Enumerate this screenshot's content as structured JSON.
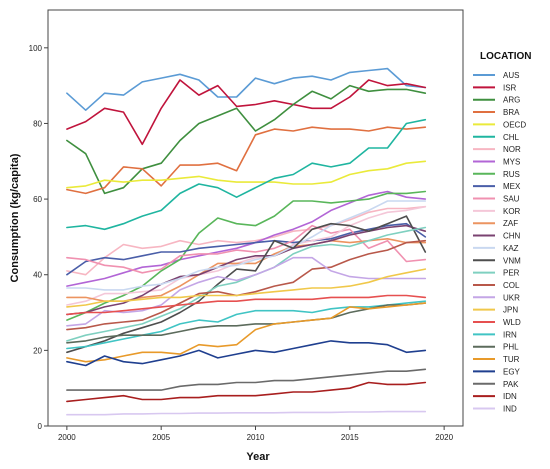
{
  "chart_data": {
    "type": "line",
    "title": "",
    "xlabel": "Year",
    "ylabel": "Consumption (kg/capita)",
    "xlim": [
      1999,
      2021
    ],
    "ylim": [
      0,
      110
    ],
    "x_ticks": [
      2000,
      2005,
      2010,
      2015,
      2020
    ],
    "y_ticks": [
      0,
      20,
      40,
      60,
      80,
      100
    ],
    "grid": false,
    "legend_title": "LOCATION",
    "legend_position": "right",
    "x": [
      2000,
      2001,
      2002,
      2003,
      2004,
      2005,
      2006,
      2007,
      2008,
      2009,
      2010,
      2011,
      2012,
      2013,
      2014,
      2015,
      2016,
      2017,
      2018,
      2019
    ],
    "series": [
      {
        "name": "AUS",
        "color": "#5b9bd5",
        "values": [
          88,
          83.5,
          88,
          87.5,
          91,
          92,
          93,
          91.5,
          87,
          87,
          92,
          90.5,
          92,
          92.5,
          91.5,
          93.5,
          94,
          94.5,
          90,
          89.5
        ]
      },
      {
        "name": "ISR",
        "color": "#c0143c",
        "values": [
          78.5,
          80.5,
          84,
          83,
          74.5,
          84,
          91.5,
          87.5,
          90,
          84.5,
          85,
          86,
          85,
          84,
          84,
          87,
          91.5,
          90,
          90.5,
          89.5
        ]
      },
      {
        "name": "ARG",
        "color": "#3f8f3f",
        "values": [
          75.5,
          72,
          61.5,
          63,
          68,
          69.5,
          75.5,
          80,
          82,
          84,
          78,
          81,
          85,
          88.5,
          86.5,
          90,
          88.5,
          89,
          89,
          88
        ]
      },
      {
        "name": "BRA",
        "color": "#e07040",
        "values": [
          62.5,
          61.5,
          63,
          68.5,
          68,
          63.5,
          69,
          69,
          69.5,
          67.5,
          77,
          78.5,
          78,
          79,
          78.5,
          78.5,
          78,
          79,
          78.5,
          79
        ]
      },
      {
        "name": "OECD",
        "color": "#eaea3a",
        "values": [
          63,
          63.5,
          65,
          64.5,
          65,
          65,
          65.5,
          66,
          65,
          64.5,
          64.5,
          64.5,
          64,
          64,
          64.5,
          66.5,
          67.5,
          68,
          69.5,
          70
        ]
      },
      {
        "name": "CHL",
        "color": "#1fb5a0",
        "values": [
          52.5,
          53,
          52,
          53.5,
          55.5,
          57,
          61.5,
          64,
          63,
          60.5,
          63,
          65.5,
          66.5,
          69.5,
          68.5,
          69.5,
          73.5,
          73.5,
          80,
          81
        ]
      },
      {
        "name": "NOR",
        "color": "#f7b6c2",
        "values": [
          41,
          40,
          44.5,
          48,
          47,
          47.5,
          49,
          48,
          49,
          48.5,
          49,
          50,
          51.5,
          52,
          53,
          54.5,
          56.5,
          57.5,
          57.5,
          58
        ]
      },
      {
        "name": "MYS",
        "color": "#b265d6",
        "values": [
          37,
          38,
          39,
          40.5,
          42,
          42.5,
          44,
          45,
          46,
          47,
          48.5,
          50.5,
          52,
          54,
          57,
          59,
          61,
          62,
          60.5,
          60
        ]
      },
      {
        "name": "RUS",
        "color": "#59b65a",
        "values": [
          28,
          30,
          32.5,
          34.5,
          37,
          41,
          44,
          51,
          55,
          53.5,
          53,
          55.5,
          59.5,
          59.5,
          59,
          59.5,
          60,
          61.5,
          61.5,
          62
        ]
      },
      {
        "name": "MEX",
        "color": "#4a5ea8",
        "values": [
          40,
          43.5,
          44.5,
          44,
          45,
          46,
          46,
          47,
          47.5,
          48,
          48.5,
          49,
          48.5,
          49,
          49.5,
          51,
          52,
          53,
          53.5,
          50
        ]
      },
      {
        "name": "SAU",
        "color": "#f091b0",
        "values": [
          44.5,
          44,
          42.5,
          42,
          40.5,
          41.5,
          45,
          45.5,
          45.5,
          46.5,
          46,
          47,
          49,
          53,
          51,
          52,
          47,
          49,
          43.5,
          44
        ]
      },
      {
        "name": "KOR",
        "color": "#f4c7d8",
        "values": [
          32,
          33,
          35,
          35,
          35.5,
          36,
          39,
          40,
          41,
          43,
          44.5,
          45,
          48,
          49,
          50,
          53,
          55,
          56.5,
          57,
          58
        ]
      },
      {
        "name": "ZAF",
        "color": "#ec9460",
        "values": [
          34,
          34,
          33,
          33,
          34,
          34.5,
          37,
          40,
          43,
          43,
          43,
          45.5,
          47.5,
          48,
          49,
          48.5,
          49,
          49.5,
          48.5,
          48.5
        ]
      },
      {
        "name": "CHN",
        "color": "#7a4270",
        "values": [
          29.5,
          30,
          31.5,
          32.5,
          34.5,
          37.5,
          39.5,
          40,
          42,
          44,
          45,
          45,
          47,
          48,
          49,
          50.5,
          51.5,
          52.5,
          53,
          51.5
        ]
      },
      {
        "name": "KAZ",
        "color": "#c9d8f0",
        "values": [
          36.5,
          36.5,
          36,
          36,
          37,
          37.5,
          39,
          41,
          42,
          42.5,
          44,
          45,
          47.5,
          50,
          53,
          55,
          57,
          59.5,
          59.5,
          59.5
        ]
      },
      {
        "name": "VNM",
        "color": "#4e4e4e",
        "values": [
          19.5,
          21,
          22.5,
          24.5,
          26,
          27.5,
          30,
          33,
          37.5,
          41.5,
          41,
          49,
          47,
          52,
          53.5,
          53,
          51.5,
          53.5,
          55.5,
          46
        ]
      },
      {
        "name": "PER",
        "color": "#7fd0c0",
        "values": [
          22.5,
          24,
          25,
          26,
          27,
          29,
          31,
          34,
          37,
          38,
          40,
          42,
          45.5,
          47.5,
          48,
          47.5,
          49,
          50.5,
          51.5,
          52.5
        ]
      },
      {
        "name": "COL",
        "color": "#b8584a",
        "values": [
          25.5,
          26,
          27,
          27.5,
          28,
          30,
          32.5,
          35,
          35.5,
          34.5,
          35.5,
          37,
          38,
          41.5,
          42,
          44,
          45.5,
          46.5,
          48.5,
          49
        ]
      },
      {
        "name": "UKR",
        "color": "#c4a6e6",
        "values": [
          26.5,
          27,
          30.5,
          30,
          30.5,
          32,
          36,
          38,
          39.5,
          38.5,
          40,
          42,
          44.5,
          44.5,
          41,
          39.5,
          39,
          39,
          39,
          39
        ]
      },
      {
        "name": "JPN",
        "color": "#f0c84a",
        "values": [
          31.5,
          32,
          33,
          33,
          33.5,
          34,
          34,
          34.5,
          34.5,
          34.5,
          35,
          35.5,
          36,
          36.5,
          36.5,
          37,
          38,
          39.5,
          40.5,
          41.5
        ]
      },
      {
        "name": "WLD",
        "color": "#e65050",
        "values": [
          29.5,
          30,
          30,
          30.5,
          31,
          31.5,
          32,
          32.5,
          33,
          33,
          33.5,
          33.5,
          33.5,
          33.5,
          34,
          34,
          34,
          34.5,
          34.5,
          34
        ]
      },
      {
        "name": "IRN",
        "color": "#40c4c4",
        "values": [
          20.5,
          21,
          22,
          23,
          24,
          25,
          27,
          28,
          27.5,
          29.5,
          30.5,
          30.5,
          30.5,
          30,
          31,
          31.5,
          31.5,
          32,
          32.5,
          33
        ]
      },
      {
        "name": "PHL",
        "color": "#5c6b5c",
        "values": [
          22,
          22.5,
          23.5,
          24,
          24,
          24,
          25,
          26,
          26.5,
          26.5,
          27,
          27,
          27.5,
          28,
          28.5,
          30,
          31,
          32,
          32,
          32.5
        ]
      },
      {
        "name": "TUR",
        "color": "#e89a2a",
        "values": [
          18,
          17,
          17.5,
          18.5,
          19.5,
          19.5,
          19,
          21.5,
          21,
          21.5,
          25.5,
          27,
          27.5,
          28,
          28.5,
          31.5,
          31,
          31.5,
          32,
          32.5
        ]
      },
      {
        "name": "EGY",
        "color": "#1f3f8f",
        "values": [
          17,
          16,
          18.5,
          17,
          16.5,
          17.5,
          18.5,
          20,
          18,
          19,
          20,
          19.5,
          20.5,
          21.5,
          22.5,
          22,
          22,
          21.5,
          19.5,
          20
        ]
      },
      {
        "name": "PAK",
        "color": "#6a6a6a",
        "values": [
          9.5,
          9.5,
          9.5,
          9.5,
          9.5,
          9.5,
          10.5,
          11,
          11,
          11.5,
          11.5,
          12,
          12,
          12.5,
          13,
          13.5,
          14,
          14.5,
          14.5,
          15
        ]
      },
      {
        "name": "IDN",
        "color": "#a81e1e",
        "values": [
          6.5,
          7,
          7.5,
          8,
          7,
          7,
          7.5,
          7.5,
          8,
          8,
          8,
          8.5,
          9,
          9,
          9.5,
          10,
          11.5,
          11,
          11,
          11.5
        ]
      },
      {
        "name": "IND",
        "color": "#d8c8f0",
        "values": [
          3,
          3,
          3,
          3.2,
          3.2,
          3.3,
          3.3,
          3.4,
          3.4,
          3.5,
          3.5,
          3.5,
          3.6,
          3.6,
          3.6,
          3.7,
          3.7,
          3.8,
          3.8,
          3.8
        ]
      }
    ]
  }
}
